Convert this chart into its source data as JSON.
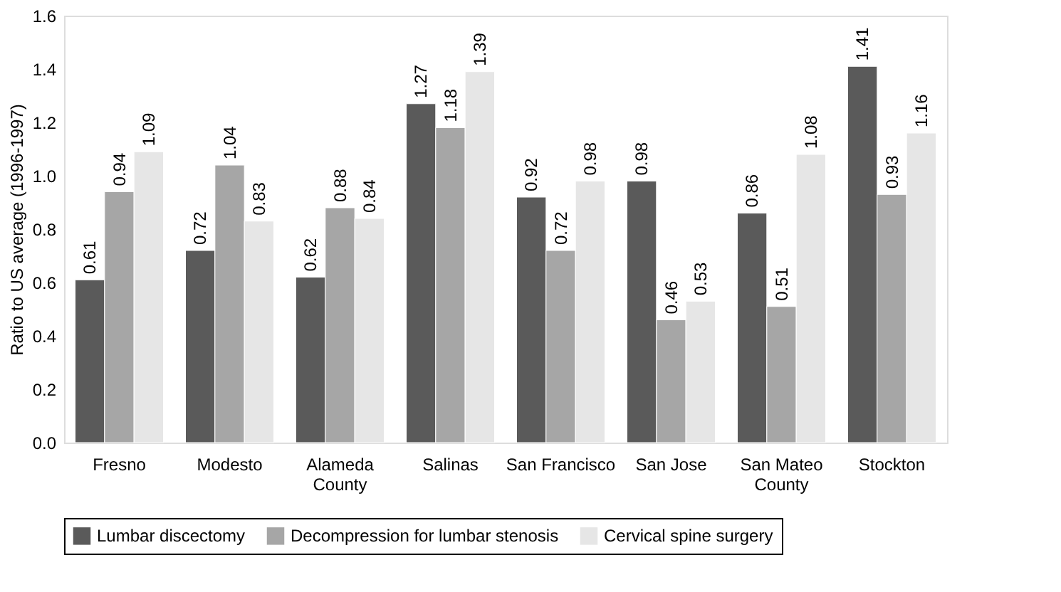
{
  "chart_data": {
    "type": "bar",
    "ylabel": "Ratio to US average (1996-1997)",
    "categories": [
      "Fresno",
      "Modesto",
      "Alameda County",
      "Salinas",
      "San Francisco",
      "San Jose",
      "San Mateo County",
      "Stockton"
    ],
    "series": [
      {
        "name": "Lumbar discectomy",
        "color": "#5a5a5a",
        "values": [
          0.61,
          0.72,
          0.62,
          1.27,
          0.92,
          0.98,
          0.86,
          1.41
        ]
      },
      {
        "name": "Decompression for lumbar stenosis",
        "color": "#a6a6a6",
        "values": [
          0.94,
          1.04,
          0.88,
          1.18,
          0.72,
          0.46,
          0.51,
          0.93
        ]
      },
      {
        "name": "Cervical spine surgery",
        "color": "#e6e6e6",
        "values": [
          1.09,
          0.83,
          0.84,
          1.39,
          0.98,
          0.53,
          1.08,
          1.16
        ]
      }
    ],
    "ylim": [
      0,
      1.6
    ],
    "yticks": [
      {
        "value": 0,
        "label": "0.0"
      },
      {
        "value": 0.2,
        "label": "0.2"
      },
      {
        "value": 0.4,
        "label": "0.4"
      },
      {
        "value": 0.6,
        "label": "0.6"
      },
      {
        "value": 0.8,
        "label": "0.8"
      },
      {
        "value": 1.0,
        "label": "1.0"
      },
      {
        "value": 1.2,
        "label": "1.2"
      },
      {
        "value": 1.4,
        "label": "1.4"
      },
      {
        "value": 1.6,
        "label": "1.6"
      }
    ],
    "data_labels": true,
    "grid": false,
    "legend": "bottom"
  }
}
